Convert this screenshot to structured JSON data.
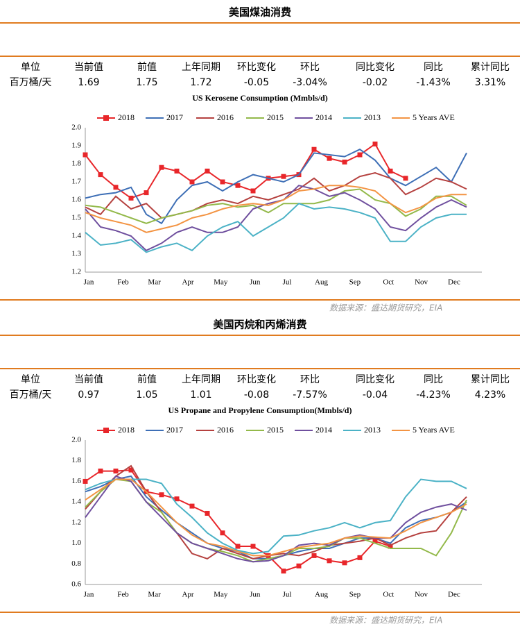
{
  "sections": [
    {
      "title": "美国煤油消费",
      "table": {
        "header": [
          "单位",
          "当前值",
          "前值",
          "上年同期",
          "环比变化",
          "环比",
          "同比变化",
          "同比",
          "累计同比"
        ],
        "row": [
          "百万桶/天",
          "1.69",
          "1.75",
          "1.72",
          "-0.05",
          "-3.04%",
          "-0.02",
          "-1.43%",
          "3.31%"
        ]
      },
      "source": "数据来源：盛达期货研究，EIA"
    },
    {
      "title": "美国丙烷和丙烯消费",
      "table": {
        "header": [
          "单位",
          "当前值",
          "前值",
          "上年同期",
          "环比变化",
          "环比",
          "同比变化",
          "同比",
          "累计同比"
        ],
        "row": [
          "百万桶/天",
          "0.97",
          "1.05",
          "1.01",
          "-0.08",
          "-7.57%",
          "-0.04",
          "-4.23%",
          "4.23%"
        ]
      },
      "source": "数据来源：盛达期货研究，EIA"
    }
  ],
  "chart_data": [
    {
      "type": "line",
      "title": "US Kerosene Consumption (Mmbls/d)",
      "x": [
        1,
        3,
        5,
        7,
        9,
        11,
        13,
        15,
        17,
        19,
        21,
        23,
        25,
        27,
        29,
        31,
        33,
        35,
        37,
        39,
        41,
        43,
        45,
        47,
        49,
        51
      ],
      "xlim": [
        1,
        53
      ],
      "xticks": [
        {
          "value": 1,
          "label": "Jan"
        },
        {
          "value": 5.5,
          "label": "Feb"
        },
        {
          "value": 9.6,
          "label": "Mar"
        },
        {
          "value": 14,
          "label": "Apr"
        },
        {
          "value": 18.3,
          "label": "May"
        },
        {
          "value": 22.8,
          "label": "Jun"
        },
        {
          "value": 27,
          "label": "Jul"
        },
        {
          "value": 31.5,
          "label": "Aug"
        },
        {
          "value": 35.9,
          "label": "Sep"
        },
        {
          "value": 40.3,
          "label": "Oct"
        },
        {
          "value": 44.6,
          "label": "Nov"
        },
        {
          "value": 48.9,
          "label": "Dec"
        }
      ],
      "ylim": [
        1.2,
        2.0
      ],
      "yticks": [
        {
          "value": 1.2,
          "label": "1.2"
        },
        {
          "value": 1.3,
          "label": "1.3"
        },
        {
          "value": 1.4,
          "label": "1.4"
        },
        {
          "value": 1.5,
          "label": "1.5"
        },
        {
          "value": 1.6,
          "label": "1.6"
        },
        {
          "value": 1.7,
          "label": "1.7"
        },
        {
          "value": 1.8,
          "label": "1.8"
        },
        {
          "value": 1.9,
          "label": "1.9"
        },
        {
          "value": 2.0,
          "label": "2.0"
        }
      ],
      "grid": false,
      "series": [
        {
          "name": "2018",
          "color": "#e8262a",
          "marker": "square",
          "values": [
            1.85,
            1.74,
            1.67,
            1.61,
            1.64,
            1.78,
            1.76,
            1.7,
            1.76,
            1.7,
            1.68,
            1.65,
            1.72,
            1.73,
            1.74,
            1.88,
            1.83,
            1.81,
            1.85,
            1.91,
            1.76,
            1.72,
            null,
            null,
            null,
            null
          ]
        },
        {
          "name": "2017",
          "color": "#3e6fb6",
          "values": [
            1.61,
            1.63,
            1.64,
            1.67,
            1.52,
            1.47,
            1.6,
            1.68,
            1.7,
            1.65,
            1.7,
            1.74,
            1.72,
            1.7,
            1.74,
            1.86,
            1.85,
            1.84,
            1.88,
            1.82,
            1.72,
            1.68,
            1.73,
            1.78,
            1.7,
            1.86
          ]
        },
        {
          "name": "2016",
          "color": "#b5413f",
          "values": [
            1.56,
            1.52,
            1.62,
            1.55,
            1.58,
            1.5,
            1.52,
            1.54,
            1.58,
            1.6,
            1.58,
            1.62,
            1.6,
            1.63,
            1.66,
            1.72,
            1.65,
            1.68,
            1.73,
            1.75,
            1.72,
            1.63,
            1.67,
            1.72,
            1.7,
            1.66
          ]
        },
        {
          "name": "2015",
          "color": "#93b94a",
          "values": [
            1.57,
            1.56,
            1.53,
            1.5,
            1.47,
            1.5,
            1.52,
            1.54,
            1.57,
            1.58,
            1.56,
            1.57,
            1.53,
            1.58,
            1.58,
            1.58,
            1.6,
            1.65,
            1.66,
            1.6,
            1.58,
            1.51,
            1.55,
            1.62,
            1.62,
            1.57
          ]
        },
        {
          "name": "2014",
          "color": "#6f4f9e",
          "values": [
            1.55,
            1.45,
            1.43,
            1.4,
            1.32,
            1.36,
            1.42,
            1.45,
            1.42,
            1.42,
            1.45,
            1.55,
            1.58,
            1.6,
            1.68,
            1.66,
            1.62,
            1.64,
            1.6,
            1.55,
            1.45,
            1.43,
            1.5,
            1.56,
            1.6,
            1.56
          ]
        },
        {
          "name": "2013",
          "color": "#4bb2c6",
          "values": [
            1.42,
            1.35,
            1.36,
            1.38,
            1.31,
            1.34,
            1.36,
            1.32,
            1.4,
            1.45,
            1.48,
            1.4,
            1.45,
            1.5,
            1.58,
            1.55,
            1.56,
            1.55,
            1.53,
            1.5,
            1.37,
            1.37,
            1.45,
            1.5,
            1.52,
            1.52
          ]
        },
        {
          "name": "5 Years AVE",
          "color": "#f39443",
          "values": [
            1.53,
            1.5,
            1.48,
            1.46,
            1.42,
            1.44,
            1.46,
            1.5,
            1.52,
            1.55,
            1.57,
            1.58,
            1.57,
            1.6,
            1.65,
            1.66,
            1.68,
            1.68,
            1.67,
            1.65,
            1.58,
            1.53,
            1.56,
            1.61,
            1.63,
            1.63
          ]
        }
      ]
    },
    {
      "type": "line",
      "title": "US Propane and Propylene Consumption(Mmbls/d)",
      "x": [
        1,
        3,
        5,
        7,
        9,
        11,
        13,
        15,
        17,
        19,
        21,
        23,
        25,
        27,
        29,
        31,
        33,
        35,
        37,
        39,
        41,
        43,
        45,
        47,
        49,
        51
      ],
      "xlim": [
        1,
        53
      ],
      "xticks": [
        {
          "value": 1,
          "label": "Jan"
        },
        {
          "value": 5.5,
          "label": "Feb"
        },
        {
          "value": 9.6,
          "label": "Mar"
        },
        {
          "value": 14,
          "label": "Apr"
        },
        {
          "value": 18.3,
          "label": "May"
        },
        {
          "value": 22.8,
          "label": "Jun"
        },
        {
          "value": 27,
          "label": "Jul"
        },
        {
          "value": 31.5,
          "label": "Aug"
        },
        {
          "value": 35.9,
          "label": "Sep"
        },
        {
          "value": 40.3,
          "label": "Oct"
        },
        {
          "value": 44.6,
          "label": "Nov"
        },
        {
          "value": 48.9,
          "label": "Dec"
        }
      ],
      "ylim": [
        0.6,
        2.0
      ],
      "yticks": [
        {
          "value": 0.6,
          "label": "0.6"
        },
        {
          "value": 0.8,
          "label": "0.8"
        },
        {
          "value": 1.0,
          "label": "1.0"
        },
        {
          "value": 1.2,
          "label": "1.2"
        },
        {
          "value": 1.4,
          "label": "1.4"
        },
        {
          "value": 1.6,
          "label": "1.6"
        },
        {
          "value": 1.8,
          "label": "1.8"
        },
        {
          "value": 2.0,
          "label": "2.0"
        }
      ],
      "grid": false,
      "series": [
        {
          "name": "2018",
          "color": "#e8262a",
          "marker": "square",
          "values": [
            1.6,
            1.7,
            1.7,
            1.71,
            1.5,
            1.47,
            1.43,
            1.36,
            1.29,
            1.1,
            0.97,
            0.97,
            0.88,
            0.73,
            0.78,
            0.88,
            0.83,
            0.81,
            0.86,
            1.02,
            0.97,
            null,
            null,
            null,
            null,
            null
          ]
        },
        {
          "name": "2017",
          "color": "#3e6fb6",
          "values": [
            1.5,
            1.55,
            1.62,
            1.65,
            1.45,
            1.32,
            1.2,
            1.1,
            1.0,
            0.95,
            0.92,
            0.85,
            0.85,
            0.88,
            0.92,
            0.95,
            0.95,
            1.0,
            1.05,
            1.05,
            1.0,
            1.15,
            1.22,
            1.25,
            1.3,
            1.4
          ]
        },
        {
          "name": "2016",
          "color": "#b5413f",
          "values": [
            1.33,
            1.5,
            1.65,
            1.75,
            1.5,
            1.3,
            1.1,
            0.9,
            0.85,
            0.95,
            0.9,
            0.85,
            0.88,
            0.9,
            0.88,
            0.92,
            0.98,
            1.0,
            1.02,
            1.05,
            0.98,
            1.05,
            1.1,
            1.12,
            1.3,
            1.45
          ]
        },
        {
          "name": "2015",
          "color": "#93b94a",
          "values": [
            1.35,
            1.5,
            1.62,
            1.6,
            1.4,
            1.3,
            1.1,
            1.0,
            0.95,
            0.92,
            0.88,
            0.82,
            0.85,
            0.88,
            0.95,
            0.95,
            0.97,
            1.05,
            1.05,
            1.0,
            0.95,
            0.95,
            0.95,
            0.88,
            1.1,
            1.42
          ]
        },
        {
          "name": "2014",
          "color": "#6f4f9e",
          "values": [
            1.25,
            1.45,
            1.65,
            1.6,
            1.4,
            1.25,
            1.1,
            1.0,
            0.95,
            0.9,
            0.85,
            0.82,
            0.83,
            0.88,
            0.98,
            1.0,
            0.98,
            1.05,
            1.08,
            1.05,
            1.05,
            1.2,
            1.3,
            1.35,
            1.38,
            1.32
          ]
        },
        {
          "name": "2013",
          "color": "#4bb2c6",
          "values": [
            1.52,
            1.58,
            1.62,
            1.62,
            1.62,
            1.58,
            1.38,
            1.25,
            1.1,
            1.0,
            0.93,
            0.9,
            0.92,
            1.07,
            1.08,
            1.12,
            1.15,
            1.2,
            1.15,
            1.2,
            1.22,
            1.45,
            1.62,
            1.6,
            1.6,
            1.53
          ]
        },
        {
          "name": "5 Years AVE",
          "color": "#f39443",
          "values": [
            1.42,
            1.52,
            1.62,
            1.62,
            1.5,
            1.35,
            1.2,
            1.08,
            1.0,
            0.97,
            0.92,
            0.88,
            0.88,
            0.92,
            0.96,
            0.98,
            1.0,
            1.05,
            1.07,
            1.06,
            1.05,
            1.12,
            1.2,
            1.25,
            1.3,
            1.38
          ]
        }
      ]
    }
  ]
}
